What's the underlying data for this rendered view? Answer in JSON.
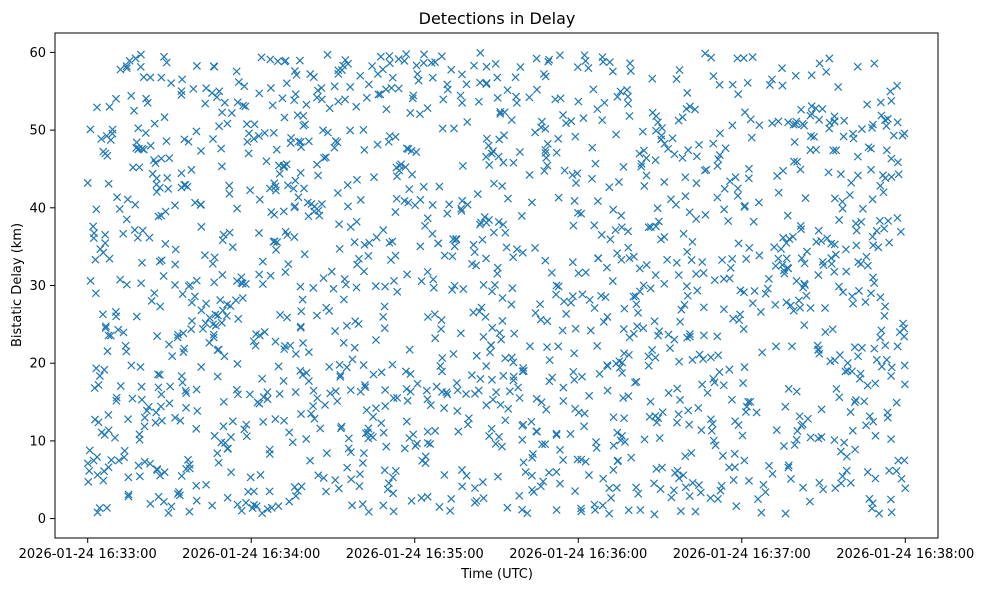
{
  "chart_data": {
    "type": "scatter",
    "title": "Detections in Delay",
    "xlabel": "Time (UTC)",
    "ylabel": "Bistatic Delay (km)",
    "marker": "x",
    "color": "#1f77b4",
    "grid": false,
    "legend": "none",
    "xlim": [
      "2026-01-24 16:32:48",
      "2026-01-24 16:38:12"
    ],
    "ylim": [
      -2.5,
      62.5
    ],
    "x_ticks": [
      {
        "value": "2026-01-24 16:33:00",
        "label": "2026-01-24 16:33:00"
      },
      {
        "value": "2026-01-24 16:34:00",
        "label": "2026-01-24 16:34:00"
      },
      {
        "value": "2026-01-24 16:35:00",
        "label": "2026-01-24 16:35:00"
      },
      {
        "value": "2026-01-24 16:36:00",
        "label": "2026-01-24 16:36:00"
      },
      {
        "value": "2026-01-24 16:37:00",
        "label": "2026-01-24 16:37:00"
      },
      {
        "value": "2026-01-24 16:38:00",
        "label": "2026-01-24 16:38:00"
      }
    ],
    "y_ticks": [
      0,
      10,
      20,
      30,
      40,
      50,
      60
    ],
    "series": [
      {
        "x_start": "2026-01-24 16:33:00",
        "x_end": "2026-01-24 16:38:00",
        "point_count": 1600,
        "y_range": [
          0.5,
          60
        ],
        "distribution": "uniform random across time and delay",
        "points": [
          [
            "2026-01-24 16:33:00",
            43.2
          ],
          [
            "2026-01-24 16:33:01",
            50.1
          ],
          [
            "2026-01-24 16:33:02",
            37.6
          ],
          [
            "2026-01-24 16:33:03",
            29.0
          ],
          [
            "2026-01-24 16:33:04",
            17.2
          ],
          [
            "2026-01-24 16:33:06",
            6.1
          ],
          [
            "2026-01-24 16:33:08",
            53.0
          ],
          [
            "2026-01-24 16:33:10",
            10.4
          ],
          [
            "2026-01-24 16:33:12",
            57.8
          ],
          [
            "2026-01-24 16:33:15",
            3.1
          ],
          [
            "2026-01-24 16:33:18",
            26.0
          ],
          [
            "2026-01-24 16:33:20",
            47.6
          ],
          [
            "2026-01-24 16:33:23",
            1.9
          ],
          [
            "2026-01-24 16:33:26",
            2.8
          ],
          [
            "2026-01-24 16:33:29",
            58.7
          ],
          [
            "2026-01-24 16:33:31",
            20.9
          ],
          [
            "2026-01-24 16:33:34",
            12.6
          ],
          [
            "2026-01-24 16:33:37",
            48.5
          ],
          [
            "2026-01-24 16:33:40",
            2.3
          ],
          [
            "2026-01-24 16:33:43",
            33.9
          ],
          [
            "2026-01-24 16:33:46",
            25.0
          ],
          [
            "2026-01-24 16:33:49",
            9.8
          ],
          [
            "2026-01-24 16:33:52",
            41.8
          ],
          [
            "2026-01-24 16:33:55",
            1.8
          ],
          [
            "2026-01-24 16:33:58",
            30.2
          ],
          [
            "2026-01-24 16:34:01",
            3.5
          ],
          [
            "2026-01-24 16:34:04",
            18.0
          ],
          [
            "2026-01-24 16:34:07",
            59.1
          ],
          [
            "2026-01-24 16:34:10",
            1.6
          ],
          [
            "2026-01-24 16:34:13",
            45.6
          ],
          [
            "2026-01-24 16:34:16",
            57.6
          ],
          [
            "2026-01-24 16:34:19",
            22.6
          ],
          [
            "2026-01-24 16:34:22",
            13.5
          ],
          [
            "2026-01-24 16:34:25",
            39.0
          ],
          [
            "2026-01-24 16:34:28",
            59.7
          ],
          [
            "2026-01-24 16:34:31",
            48.6
          ],
          [
            "2026-01-24 16:34:34",
            28.2
          ],
          [
            "2026-01-24 16:34:37",
            1.7
          ],
          [
            "2026-01-24 16:34:40",
            57.0
          ],
          [
            "2026-01-24 16:34:43",
            11.6
          ],
          [
            "2026-01-24 16:34:46",
            36.2
          ],
          [
            "2026-01-24 16:34:49",
            24.5
          ],
          [
            "2026-01-24 16:34:52",
            5.3
          ],
          [
            "2026-01-24 16:34:55",
            45.6
          ],
          [
            "2026-01-24 16:34:58",
            42.4
          ],
          [
            "2026-01-24 16:35:01",
            57.2
          ],
          [
            "2026-01-24 16:35:04",
            8.0
          ],
          [
            "2026-01-24 16:35:07",
            29.7
          ],
          [
            "2026-01-24 16:35:10",
            16.3
          ],
          [
            "2026-01-24 16:35:13",
            1.0
          ],
          [
            "2026-01-24 16:35:16",
            11.2
          ],
          [
            "2026-01-24 16:35:19",
            55.9
          ],
          [
            "2026-01-24 16:35:22",
            34.3
          ],
          [
            "2026-01-24 16:35:25",
            4.7
          ],
          [
            "2026-01-24 16:35:28",
            22.3
          ],
          [
            "2026-01-24 16:35:31",
            48.8
          ],
          [
            "2026-01-24 16:35:34",
            1.4
          ],
          [
            "2026-01-24 16:35:37",
            56.8
          ],
          [
            "2026-01-24 16:35:40",
            19.0
          ],
          [
            "2026-01-24 16:35:43",
            40.7
          ],
          [
            "2026-01-24 16:35:46",
            27.6
          ],
          [
            "2026-01-24 16:35:49",
            58.8
          ],
          [
            "2026-01-24 16:35:52",
            6.0
          ],
          [
            "2026-01-24 16:35:55",
            44.8
          ],
          [
            "2026-01-24 16:35:58",
            33.0
          ],
          [
            "2026-01-24 16:36:01",
            1.3
          ],
          [
            "2026-01-24 16:36:04",
            15.8
          ],
          [
            "2026-01-24 16:36:07",
            52.7
          ],
          [
            "2026-01-24 16:36:10",
            28.5
          ],
          [
            "2026-01-24 16:36:13",
            9.4
          ],
          [
            "2026-01-24 16:36:16",
            37.5
          ],
          [
            "2026-01-24 16:36:19",
            58.6
          ],
          [
            "2026-01-24 16:36:22",
            3.2
          ],
          [
            "2026-01-24 16:36:25",
            46.4
          ],
          [
            "2026-01-24 16:36:28",
            25.4
          ],
          [
            "2026-01-24 16:36:31",
            13.7
          ],
          [
            "2026-01-24 16:36:34",
            41.1
          ],
          [
            "2026-01-24 16:36:37",
            20.2
          ],
          [
            "2026-01-24 16:36:40",
            54.8
          ],
          [
            "2026-01-24 16:36:43",
            0.9
          ],
          [
            "2026-01-24 16:36:46",
            31.6
          ],
          [
            "2026-01-24 16:36:49",
            11.3
          ],
          [
            "2026-01-24 16:36:52",
            49.6
          ],
          [
            "2026-01-24 16:36:55",
            38.3
          ],
          [
            "2026-01-24 16:36:58",
            1.6
          ],
          [
            "2026-01-24 16:37:01",
            19.5
          ],
          [
            "2026-01-24 16:37:04",
            59.4
          ],
          [
            "2026-01-24 16:37:07",
            26.6
          ],
          [
            "2026-01-24 16:37:10",
            6.8
          ],
          [
            "2026-01-24 16:37:13",
            44.1
          ],
          [
            "2026-01-24 16:37:16",
            14.4
          ],
          [
            "2026-01-24 16:37:19",
            50.7
          ],
          [
            "2026-01-24 16:37:22",
            33.5
          ],
          [
            "2026-01-24 16:37:25",
            2.2
          ],
          [
            "2026-01-24 16:37:28",
            21.7
          ],
          [
            "2026-01-24 16:37:31",
            57.5
          ],
          [
            "2026-01-24 16:37:34",
            10.1
          ],
          [
            "2026-01-24 16:37:37",
            39.9
          ],
          [
            "2026-01-24 16:37:40",
            4.6
          ],
          [
            "2026-01-24 16:37:43",
            29.3
          ],
          [
            "2026-01-24 16:37:46",
            53.3
          ],
          [
            "2026-01-24 16:37:49",
            17.4
          ],
          [
            "2026-01-24 16:37:52",
            42.0
          ],
          [
            "2026-01-24 16:37:55",
            0.8
          ],
          [
            "2026-01-24 16:37:57",
            55.7
          ],
          [
            "2026-01-24 16:37:58",
            24.0
          ],
          [
            "2026-01-24 16:37:59",
            49.3
          ],
          [
            "2026-01-24 16:38:00",
            3.9
          ]
        ]
      }
    ]
  }
}
